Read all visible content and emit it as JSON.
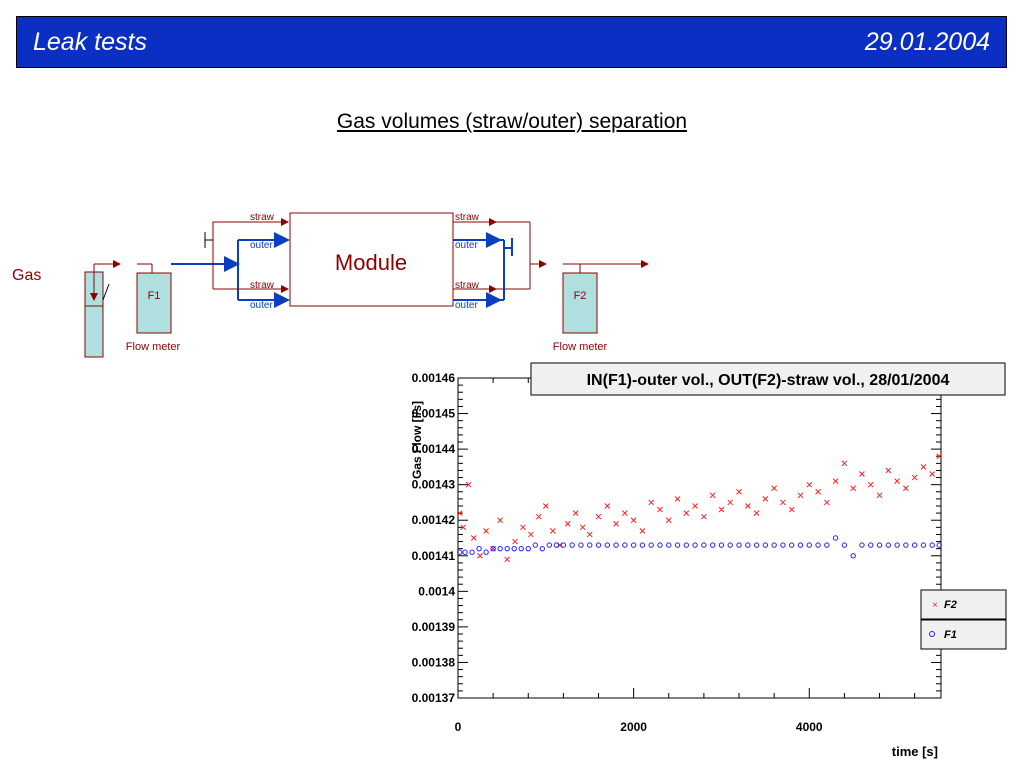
{
  "header": {
    "title": "Leak tests",
    "date": "29.01.2004"
  },
  "subtitle": "Gas volumes (straw/outer) separation",
  "diagram": {
    "gas_label": "Gas",
    "f1_label": "F1",
    "f2_label": "F2",
    "flow_meter_left": "Flow meter",
    "flow_meter_right": "Flow meter",
    "module_label": "Module",
    "ports": {
      "in_straw_top": "straw",
      "in_outer_top": "outer",
      "in_straw_bottom": "straw",
      "in_outer_bottom": "outer",
      "out_straw_top": "straw",
      "out_outer_top": "outer",
      "out_straw_bottom": "straw",
      "out_outer_bottom": "outer"
    },
    "colors": {
      "straw_line": "#8b0000",
      "outer_line": "#0a3fc0",
      "meter_fill": "#b0dfe0"
    }
  },
  "chart_data": {
    "type": "scatter",
    "title": "IN(F1)-outer vol., OUT(F2)-straw vol., 28/01/2004",
    "xlabel": "time [s]",
    "ylabel": "Gas Flow [l/s]",
    "xlim": [
      0,
      5500
    ],
    "ylim": [
      0.00137,
      0.00146
    ],
    "x_ticks": [
      "0",
      "2000",
      "4000"
    ],
    "y_ticks": [
      "0.00137",
      "0.00138",
      "0.00139",
      "0.0014",
      "0.00141",
      "0.00142",
      "0.00143",
      "0.00144",
      "0.00145",
      "0.00146"
    ],
    "grid": false,
    "legend_position": "right",
    "series": [
      {
        "name": "F2",
        "marker": "x",
        "color": "#ff2020",
        "x": [
          20,
          60,
          120,
          180,
          250,
          320,
          400,
          480,
          560,
          650,
          740,
          830,
          920,
          1000,
          1080,
          1160,
          1250,
          1340,
          1420,
          1500,
          1600,
          1700,
          1800,
          1900,
          2000,
          2100,
          2200,
          2300,
          2400,
          2500,
          2600,
          2700,
          2800,
          2900,
          3000,
          3100,
          3200,
          3300,
          3400,
          3500,
          3600,
          3700,
          3800,
          3900,
          4000,
          4100,
          4200,
          4300,
          4400,
          4500,
          4600,
          4700,
          4800,
          4900,
          5000,
          5100,
          5200,
          5300,
          5400,
          5480
        ],
        "y": [
          0.001422,
          0.001418,
          0.00143,
          0.001415,
          0.00141,
          0.001417,
          0.001412,
          0.00142,
          0.001409,
          0.001414,
          0.001418,
          0.001416,
          0.001421,
          0.001424,
          0.001417,
          0.001413,
          0.001419,
          0.001422,
          0.001418,
          0.001416,
          0.001421,
          0.001424,
          0.001419,
          0.001422,
          0.00142,
          0.001417,
          0.001425,
          0.001423,
          0.00142,
          0.001426,
          0.001422,
          0.001424,
          0.001421,
          0.001427,
          0.001423,
          0.001425,
          0.001428,
          0.001424,
          0.001422,
          0.001426,
          0.001429,
          0.001425,
          0.001423,
          0.001427,
          0.00143,
          0.001428,
          0.001425,
          0.001431,
          0.001436,
          0.001429,
          0.001433,
          0.00143,
          0.001427,
          0.001434,
          0.001431,
          0.001429,
          0.001432,
          0.001435,
          0.001433,
          0.001438
        ]
      },
      {
        "name": "F1",
        "marker": "o",
        "color": "#2020ff",
        "x": [
          20,
          80,
          160,
          240,
          320,
          400,
          480,
          560,
          640,
          720,
          800,
          880,
          960,
          1040,
          1120,
          1200,
          1300,
          1400,
          1500,
          1600,
          1700,
          1800,
          1900,
          2000,
          2100,
          2200,
          2300,
          2400,
          2500,
          2600,
          2700,
          2800,
          2900,
          3000,
          3100,
          3200,
          3300,
          3400,
          3500,
          3600,
          3700,
          3800,
          3900,
          4000,
          4100,
          4200,
          4300,
          4400,
          4500,
          4600,
          4700,
          4800,
          4900,
          5000,
          5100,
          5200,
          5300,
          5400,
          5480
        ],
        "y": [
          0.001411,
          0.001411,
          0.001411,
          0.001412,
          0.001411,
          0.001412,
          0.001412,
          0.001412,
          0.001412,
          0.001412,
          0.001412,
          0.001413,
          0.001412,
          0.001413,
          0.001413,
          0.001413,
          0.001413,
          0.001413,
          0.001413,
          0.001413,
          0.001413,
          0.001413,
          0.001413,
          0.001413,
          0.001413,
          0.001413,
          0.001413,
          0.001413,
          0.001413,
          0.001413,
          0.001413,
          0.001413,
          0.001413,
          0.001413,
          0.001413,
          0.001413,
          0.001413,
          0.001413,
          0.001413,
          0.001413,
          0.001413,
          0.001413,
          0.001413,
          0.001413,
          0.001413,
          0.001413,
          0.001415,
          0.001413,
          0.00141,
          0.001413,
          0.001413,
          0.001413,
          0.001413,
          0.001413,
          0.001413,
          0.001413,
          0.001413,
          0.001413,
          0.001413
        ]
      }
    ]
  }
}
